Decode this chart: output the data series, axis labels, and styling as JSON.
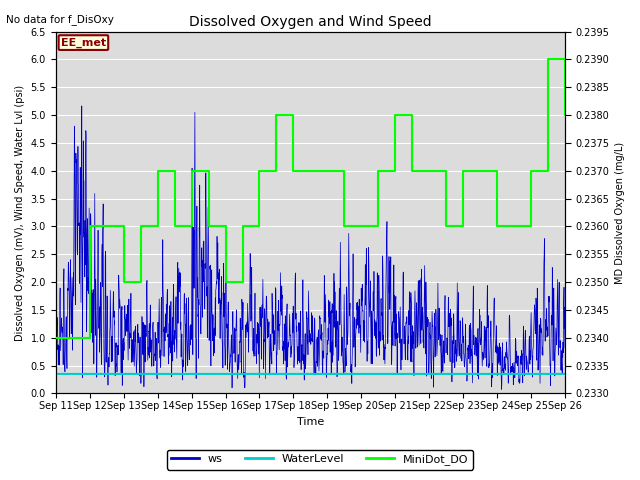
{
  "title": "Dissolved Oxygen and Wind Speed",
  "top_left_text": "No data for f_DisOxy",
  "annotation_text": "EE_met",
  "xlabel": "Time",
  "ylabel_left": "Dissolved Oxygen (mV), Wind Speed, Water Lvl (psi)",
  "ylabel_right": "MD Dissolved Oxygen (mg/L)",
  "ylim_left": [
    0.0,
    6.5
  ],
  "ylim_right": [
    0.233,
    0.2395
  ],
  "xtick_labels": [
    "Sep 11",
    "Sep 12",
    "Sep 13",
    "Sep 14",
    "Sep 15",
    "Sep 16",
    "Sep 17",
    "Sep 18",
    "Sep 19",
    "Sep 20",
    "Sep 21",
    "Sep 22",
    "Sep 23",
    "Sep 24",
    "Sep 25",
    "Sep 26"
  ],
  "color_ws": "#0000CD",
  "color_water": "#00CCCC",
  "color_do": "#00FF00",
  "bg_color": "#DCDCDC",
  "minidot_t": [
    0.0,
    1.0,
    1.0,
    2.0,
    2.0,
    2.5,
    2.5,
    3.0,
    3.0,
    3.5,
    3.5,
    4.0,
    4.0,
    4.5,
    4.5,
    5.0,
    5.0,
    5.5,
    5.5,
    6.0,
    6.0,
    6.5,
    6.5,
    7.0,
    7.0,
    8.5,
    8.5,
    9.5,
    9.5,
    10.0,
    10.0,
    10.5,
    10.5,
    11.5,
    11.5,
    12.0,
    12.0,
    13.0,
    13.0,
    14.0,
    14.0,
    14.5,
    14.5,
    15.0,
    15.0,
    15.5,
    15.5,
    15.0
  ],
  "minidot_v": [
    1.0,
    1.0,
    3.0,
    3.0,
    2.0,
    2.0,
    3.0,
    3.0,
    4.0,
    4.0,
    3.0,
    3.0,
    4.0,
    4.0,
    3.0,
    3.0,
    2.0,
    2.0,
    3.0,
    3.0,
    4.0,
    4.0,
    5.0,
    5.0,
    4.0,
    4.0,
    3.0,
    3.0,
    4.0,
    4.0,
    5.0,
    5.0,
    4.0,
    4.0,
    3.0,
    3.0,
    4.0,
    4.0,
    3.0,
    3.0,
    4.0,
    4.0,
    6.0,
    6.0,
    5.0,
    5.0,
    6.0,
    6.0
  ],
  "ws_seed": 123,
  "water_level_value": 0.35
}
